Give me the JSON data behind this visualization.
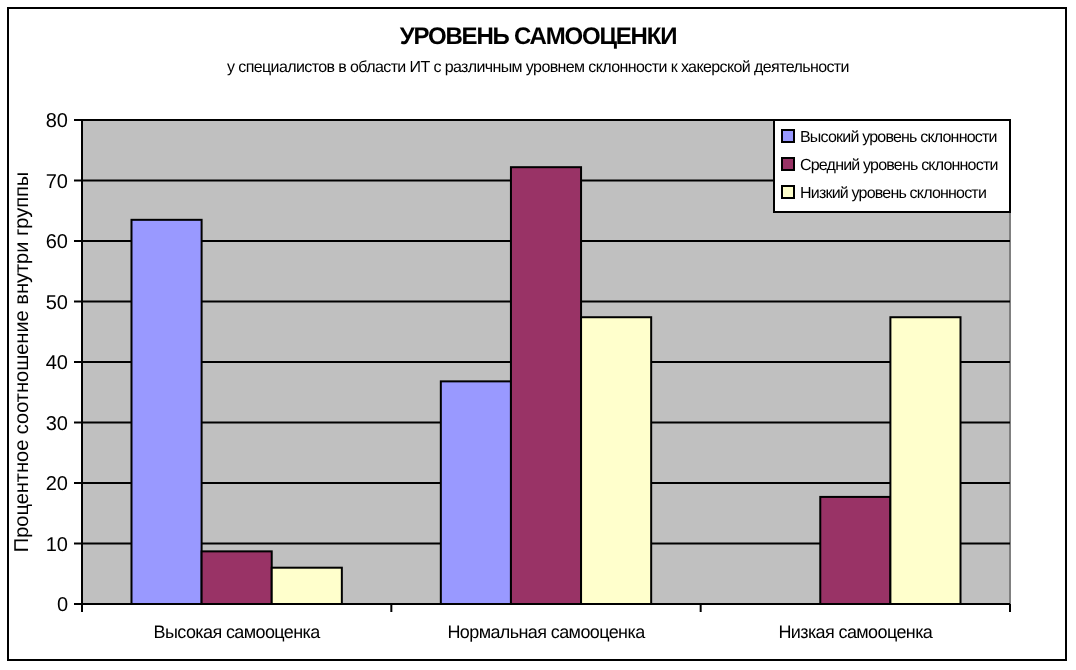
{
  "chart_data": {
    "type": "bar",
    "title": "УРОВЕНЬ САМООЦЕНКИ",
    "subtitle": "у специалистов в области ИТ с различным уровнем склонности к хакерской деятельности",
    "ylabel": "Процентное соотношение внутри группы",
    "categories": [
      "Высокая самооценка",
      "Нормальная самооценка",
      "Низкая самооценка"
    ],
    "series": [
      {
        "name": "Высокий уровень склонности",
        "color": "#9999ff",
        "values": [
          63.5,
          36.8,
          0
        ]
      },
      {
        "name": "Средний уровень склонности",
        "color": "#993366",
        "values": [
          8.7,
          72.2,
          17.7
        ]
      },
      {
        "name": "Низкий уровень склонности",
        "color": "#ffffcc",
        "values": [
          6,
          47.4,
          47.4
        ]
      }
    ],
    "ylim": [
      0,
      80
    ],
    "yticks": [
      0,
      10,
      20,
      30,
      40,
      50,
      60,
      70,
      80
    ],
    "grid": "y",
    "legend": "top right"
  }
}
